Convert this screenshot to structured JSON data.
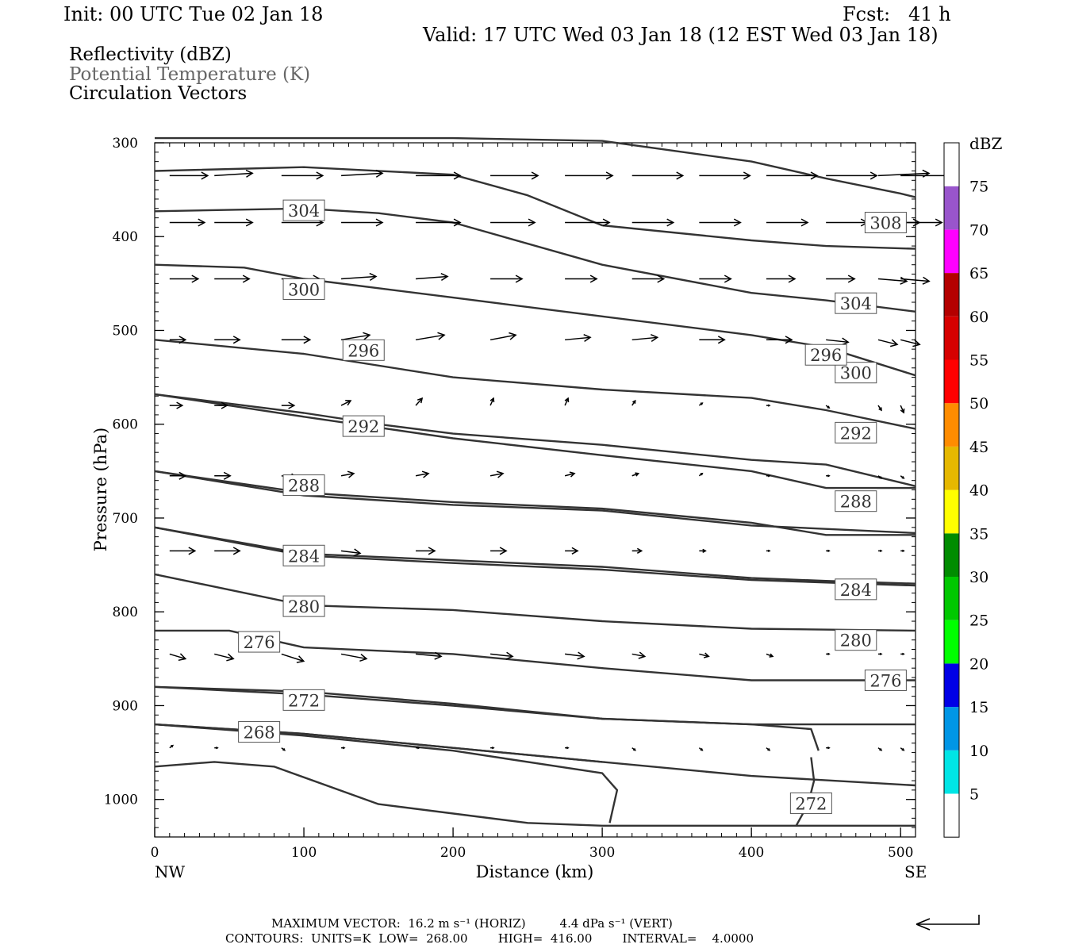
{
  "header": {
    "init": "Init: 00 UTC Tue 02 Jan 18",
    "fcst": "Fcst:   41 h",
    "valid": "Valid: 17 UTC Wed 03 Jan 18 (12 EST Wed 03 Jan 18)"
  },
  "legend": {
    "line1": "Reflectivity (dBZ)",
    "line2": "Potential Temperature (K)",
    "line3": "Circulation Vectors",
    "line2_color": "#666666"
  },
  "footer": {
    "max_vector": "MAXIMUM VECTOR:  16.2 m s⁻¹ (HORIZ)         4.4 dPa s⁻¹ (VERT)",
    "contours": "CONTOURS:  UNITS=K  LOW=  268.00        HIGH=  416.00        INTERVAL=    4.0000"
  },
  "chart_data": {
    "type": "line",
    "xlabel": "Distance (km)",
    "ylabel": "Pressure (hPa)",
    "x_ticks": [
      0,
      100,
      200,
      300,
      400,
      500
    ],
    "y_ticks": [
      300,
      400,
      500,
      600,
      700,
      800,
      900,
      1000
    ],
    "xlim": [
      0,
      510
    ],
    "ylim": [
      300,
      1040
    ],
    "y_inverted": true,
    "x_end_labels": {
      "left": "NW",
      "right": "SE"
    },
    "colorbar": {
      "label": "dBZ",
      "ticks": [
        5,
        10,
        15,
        20,
        25,
        30,
        35,
        40,
        45,
        50,
        55,
        60,
        65,
        70,
        75
      ],
      "colors": [
        "#ffffff",
        "#00e5e5",
        "#0096e6",
        "#0000e6",
        "#00ff00",
        "#00c800",
        "#008c00",
        "#ffff00",
        "#e6b800",
        "#ff8c00",
        "#ff0000",
        "#d60000",
        "#b40000",
        "#ff00ff",
        "#9955cc",
        "#ffffff"
      ]
    },
    "theta_contours": [
      {
        "label": "308",
        "x": [
          0,
          100,
          200,
          300,
          400,
          450,
          500,
          510
        ],
        "p": [
          295,
          295,
          295,
          298,
          320,
          338,
          354,
          358
        ],
        "label_at": [
          490,
          385
        ]
      },
      {
        "label": "304",
        "x": [
          0,
          100,
          200,
          250,
          300,
          400,
          450,
          510
        ],
        "p": [
          330,
          326,
          334,
          356,
          388,
          404,
          410,
          413
        ],
        "label_at": [
          100,
          372
        ]
      },
      {
        "label": "304",
        "x": [
          0,
          100,
          150,
          200,
          300,
          400,
          450,
          510
        ],
        "p": [
          373,
          370,
          375,
          385,
          430,
          460,
          468,
          480
        ],
        "label_at": [
          470,
          471
        ]
      },
      {
        "label": "300",
        "x": [
          0,
          60,
          100,
          200,
          300,
          400,
          450,
          510
        ],
        "p": [
          430,
          433,
          445,
          465,
          485,
          505,
          518,
          548
        ],
        "label_at": [
          100,
          456
        ]
      },
      {
        "label": "300",
        "x": [
          0,
          100,
          200,
          300,
          400,
          450,
          510
        ],
        "p": [
          510,
          525,
          550,
          563,
          572,
          585,
          605
        ],
        "label_at": [
          470,
          545
        ]
      },
      {
        "label": "296",
        "x": [
          0,
          100,
          150,
          200,
          300,
          400,
          450,
          510
        ],
        "p": [
          568,
          588,
          600,
          610,
          622,
          638,
          643,
          666
        ],
        "label_at": [
          140,
          521
        ]
      },
      {
        "label": "296",
        "x": [
          0,
          100,
          200,
          300,
          400,
          450,
          510
        ],
        "p": [
          568,
          592,
          615,
          633,
          650,
          668,
          668
        ],
        "label_at": [
          450,
          526
        ]
      },
      {
        "label": "292",
        "x": [
          0,
          100,
          200,
          300,
          400,
          450,
          510
        ],
        "p": [
          650,
          673,
          683,
          690,
          705,
          718,
          718
        ],
        "label_at": [
          140,
          602
        ]
      },
      {
        "label": "292",
        "x": [
          0,
          100,
          200,
          300,
          400,
          510
        ],
        "p": [
          650,
          676,
          686,
          692,
          708,
          716
        ],
        "label_at": [
          470,
          609
        ]
      },
      {
        "label": "288",
        "x": [
          0,
          100,
          200,
          300,
          400,
          450,
          510
        ],
        "p": [
          710,
          738,
          745,
          752,
          764,
          767,
          770
        ],
        "label_at": [
          100,
          665
        ]
      },
      {
        "label": "288",
        "x": [
          0,
          100,
          200,
          300,
          400,
          510
        ],
        "p": [
          710,
          740,
          748,
          755,
          766,
          772
        ],
        "label_at": [
          470,
          682
        ]
      },
      {
        "label": "284",
        "x": [
          0,
          100,
          200,
          300,
          400,
          510
        ],
        "p": [
          760,
          793,
          798,
          810,
          818,
          820
        ],
        "label_at": [
          100,
          740
        ]
      },
      {
        "label": "284",
        "x": [
          0,
          50,
          100,
          200,
          300,
          400,
          450,
          510
        ],
        "p": [
          820,
          820,
          838,
          845,
          860,
          873,
          873,
          873
        ],
        "label_at": [
          470,
          776
        ]
      },
      {
        "label": "280",
        "x": [
          0,
          100,
          200,
          300,
          400,
          510
        ],
        "p": [
          880,
          885,
          898,
          914,
          920,
          920
        ],
        "label_at": [
          100,
          794
        ]
      },
      {
        "label": "280",
        "x": [
          0,
          100,
          200,
          300,
          400,
          440,
          445
        ],
        "p": [
          880,
          888,
          900,
          914,
          920,
          925,
          948
        ],
        "label_at": [
          470,
          830
        ]
      },
      {
        "label": "276",
        "x": [
          0,
          100,
          200,
          300,
          310,
          305
        ],
        "p": [
          920,
          932,
          948,
          972,
          990,
          1025
        ],
        "label_at": [
          70,
          832
        ]
      },
      {
        "label": "276",
        "x": [
          0,
          100,
          200,
          300,
          400,
          510
        ],
        "p": [
          920,
          930,
          945,
          960,
          975,
          985
        ],
        "label_at": [
          490,
          873
        ]
      },
      {
        "label": "272",
        "x": [
          0,
          40,
          80,
          150,
          250,
          300,
          510
        ],
        "p": [
          965,
          960,
          965,
          1005,
          1025,
          1028,
          1028
        ],
        "label_at": [
          100,
          894
        ]
      },
      {
        "label": "272",
        "x": [
          440,
          442,
          438,
          430
        ],
        "p": [
          955,
          980,
          1005,
          1028
        ],
        "label_at": [
          440,
          1004
        ]
      },
      {
        "label": "268",
        "x": [
          0,
          100,
          200,
          300
        ],
        "p": [
          920,
          930,
          945,
          960
        ],
        "label_at": [
          70,
          928
        ]
      }
    ],
    "circulation_vectors": [
      {
        "level": 335,
        "u": [
          12,
          12,
          13,
          13,
          14,
          15,
          15,
          16,
          16,
          16,
          16,
          16,
          16
        ],
        "w": [
          0,
          -1,
          0,
          -1,
          0,
          0,
          0,
          0,
          0,
          0,
          0,
          -1,
          0
        ]
      },
      {
        "level": 385,
        "u": [
          11,
          12,
          13,
          13,
          14,
          14,
          14,
          13,
          13,
          13,
          13,
          13,
          13
        ],
        "w": [
          0,
          0,
          0,
          0,
          0,
          0,
          0,
          0,
          0,
          0,
          0,
          0,
          0
        ]
      },
      {
        "level": 445,
        "u": [
          9,
          11,
          12,
          11,
          10,
          10,
          10,
          10,
          10,
          9,
          9,
          9,
          9
        ],
        "w": [
          0,
          0,
          0,
          -1,
          -1,
          0,
          0,
          0,
          0,
          0,
          0,
          1,
          1
        ]
      },
      {
        "level": 510,
        "u": [
          5,
          8,
          9,
          9,
          9,
          8,
          8,
          8,
          8,
          8,
          7,
          6,
          6
        ],
        "w": [
          0,
          0,
          0,
          -2,
          -2,
          -2,
          -1,
          -1,
          0,
          0,
          1,
          2,
          2
        ]
      },
      {
        "level": 580,
        "u": [
          4,
          4,
          4,
          3,
          2,
          1,
          1,
          1,
          1,
          1,
          1,
          1,
          1
        ],
        "w": [
          0,
          0,
          0,
          -2,
          -3,
          -3,
          -3,
          -2,
          -1,
          0,
          1,
          2,
          3
        ]
      },
      {
        "level": 655,
        "u": [
          5,
          5,
          5,
          4,
          4,
          4,
          3,
          2,
          1,
          1,
          1,
          1,
          1
        ],
        "w": [
          0,
          0,
          1,
          -1,
          -1,
          -1,
          -1,
          -1,
          -1,
          0,
          0,
          1,
          1
        ]
      },
      {
        "level": 735,
        "u": [
          8,
          8,
          7,
          6,
          6,
          5,
          4,
          3,
          2,
          1,
          1,
          1,
          1
        ],
        "w": [
          0,
          0,
          2,
          1,
          0,
          0,
          0,
          0,
          0,
          0,
          0,
          0,
          0
        ]
      },
      {
        "level": 845,
        "u": [
          5,
          6,
          7,
          8,
          8,
          7,
          6,
          4,
          3,
          2,
          1,
          1,
          1
        ],
        "w": [
          2,
          2,
          3,
          2,
          1,
          1,
          1,
          1,
          1,
          1,
          0,
          0,
          0
        ]
      },
      {
        "level": 945,
        "u": [
          1,
          1,
          1,
          1,
          1,
          1,
          1,
          1,
          1,
          1,
          1,
          1,
          1
        ],
        "w": [
          -1,
          0,
          1,
          0,
          0,
          0,
          0,
          1,
          1,
          1,
          0,
          1,
          1
        ]
      }
    ],
    "vector_x": [
      10,
      40,
      85,
      125,
      175,
      225,
      275,
      320,
      365,
      410,
      450,
      485,
      500
    ]
  },
  "reference_vector_icon": "corner-arrow-icon"
}
